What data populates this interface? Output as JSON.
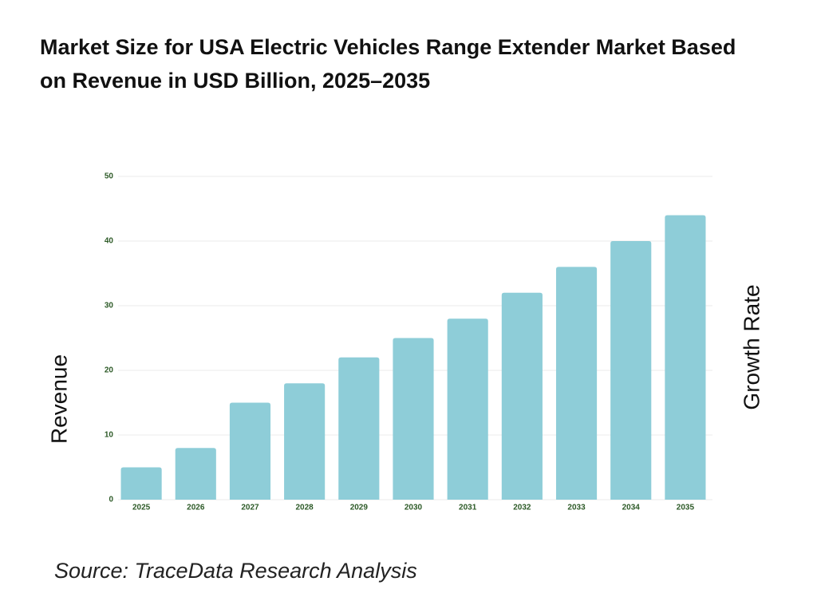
{
  "chart_data": {
    "type": "bar",
    "title": "Market Size for USA Electric Vehicles Range Extender Market Based on Revenue in USD Billion, 2025–2035",
    "y_label": "Revenue",
    "y2_label": "Growth Rate",
    "source": "Source: TraceData Research Analysis",
    "categories": [
      "2025",
      "2026",
      "2027",
      "2028",
      "2029",
      "2030",
      "2031",
      "2032",
      "2033",
      "2034",
      "2035"
    ],
    "values": [
      5,
      8,
      15,
      18,
      22,
      25,
      28,
      32,
      36,
      40,
      44
    ],
    "color": "#8ecdd8",
    "ylim": [
      0,
      50
    ],
    "yticks": [
      0,
      10,
      20,
      30,
      40,
      50
    ],
    "grid": true
  }
}
